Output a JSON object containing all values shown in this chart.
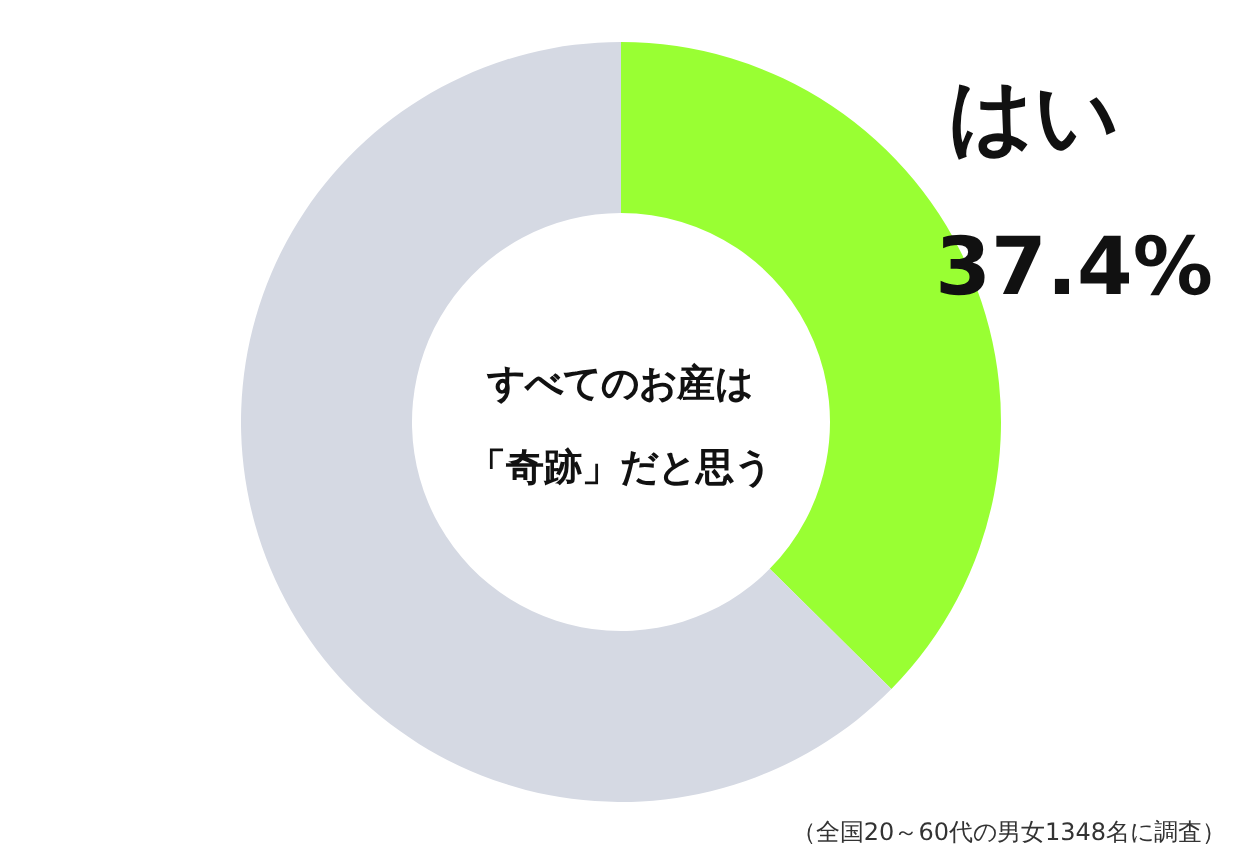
{
  "chart_data": {
    "type": "donut",
    "title": "すべてのお産は「奇跡」だと思う",
    "categories": [
      "はい",
      null
    ],
    "values": [
      37.4,
      62.6
    ],
    "colors": [
      "#99ff33",
      "#d5d9e3"
    ],
    "value_labels": [
      "37.4%",
      null
    ],
    "legend": false,
    "annotations": [
      "（全国20～60代の男女1348名に調査）"
    ]
  }
}
